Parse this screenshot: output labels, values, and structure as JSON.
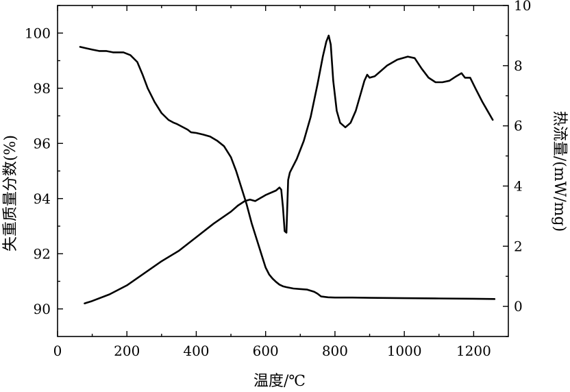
{
  "chart_data": {
    "type": "line",
    "xlabel": "温度/℃",
    "ylabel_left": "失重质量分数(%)",
    "ylabel_right": "热流量/(mW/mg)",
    "xlim": [
      0,
      1300
    ],
    "ylim_left": [
      89,
      101
    ],
    "ylim_right": [
      -1,
      10
    ],
    "xticks": [
      0,
      200,
      400,
      600,
      800,
      1000,
      1200
    ],
    "yticks_left": [
      90,
      92,
      94,
      96,
      98,
      100
    ],
    "yticks_right": [
      0,
      2,
      4,
      6,
      8,
      10
    ],
    "grid": false,
    "legend": "none",
    "series": [
      {
        "axis": "left",
        "x": [
          65,
          100,
          120,
          140,
          160,
          190,
          210,
          230,
          245,
          260,
          280,
          300,
          320,
          335,
          345,
          360,
          375,
          385,
          400,
          420,
          440,
          460,
          480,
          500,
          515,
          530,
          545,
          560,
          575,
          590,
          600,
          610,
          620,
          630,
          640,
          650,
          660,
          680,
          700,
          720,
          740,
          750,
          760,
          780,
          800,
          850,
          900,
          1000,
          1100,
          1200,
          1260
        ],
        "values": [
          99.5,
          99.4,
          99.35,
          99.35,
          99.3,
          99.3,
          99.2,
          98.95,
          98.5,
          98.0,
          97.5,
          97.1,
          96.85,
          96.75,
          96.7,
          96.6,
          96.5,
          96.4,
          96.38,
          96.32,
          96.25,
          96.1,
          95.9,
          95.5,
          95.0,
          94.4,
          93.8,
          93.1,
          92.5,
          91.9,
          91.5,
          91.25,
          91.1,
          90.98,
          90.88,
          90.82,
          90.79,
          90.74,
          90.72,
          90.7,
          90.62,
          90.55,
          90.45,
          90.42,
          90.41,
          90.41,
          90.4,
          90.39,
          90.38,
          90.37,
          90.36
        ]
      },
      {
        "axis": "right",
        "x": [
          78,
          100,
          150,
          200,
          250,
          300,
          350,
          400,
          450,
          500,
          520,
          540,
          555,
          570,
          600,
          630,
          640,
          645,
          650,
          655,
          660,
          665,
          670,
          690,
          710,
          730,
          750,
          765,
          775,
          782,
          788,
          795,
          805,
          815,
          830,
          845,
          860,
          875,
          885,
          893,
          900,
          915,
          930,
          950,
          980,
          1010,
          1030,
          1050,
          1070,
          1090,
          1110,
          1130,
          1150,
          1165,
          1175,
          1190,
          1205,
          1225,
          1240,
          1255
        ],
        "values": [
          0.1,
          0.18,
          0.4,
          0.7,
          1.1,
          1.5,
          1.85,
          2.3,
          2.75,
          3.15,
          3.35,
          3.5,
          3.55,
          3.5,
          3.7,
          3.85,
          3.95,
          3.88,
          3.3,
          2.5,
          2.45,
          4.2,
          4.45,
          4.9,
          5.5,
          6.3,
          7.4,
          8.3,
          8.8,
          9.0,
          8.7,
          7.5,
          6.5,
          6.1,
          5.95,
          6.1,
          6.5,
          7.1,
          7.5,
          7.7,
          7.6,
          7.65,
          7.8,
          8.0,
          8.2,
          8.3,
          8.25,
          7.9,
          7.6,
          7.45,
          7.45,
          7.5,
          7.65,
          7.75,
          7.6,
          7.6,
          7.25,
          6.8,
          6.5,
          6.2
        ]
      }
    ]
  }
}
